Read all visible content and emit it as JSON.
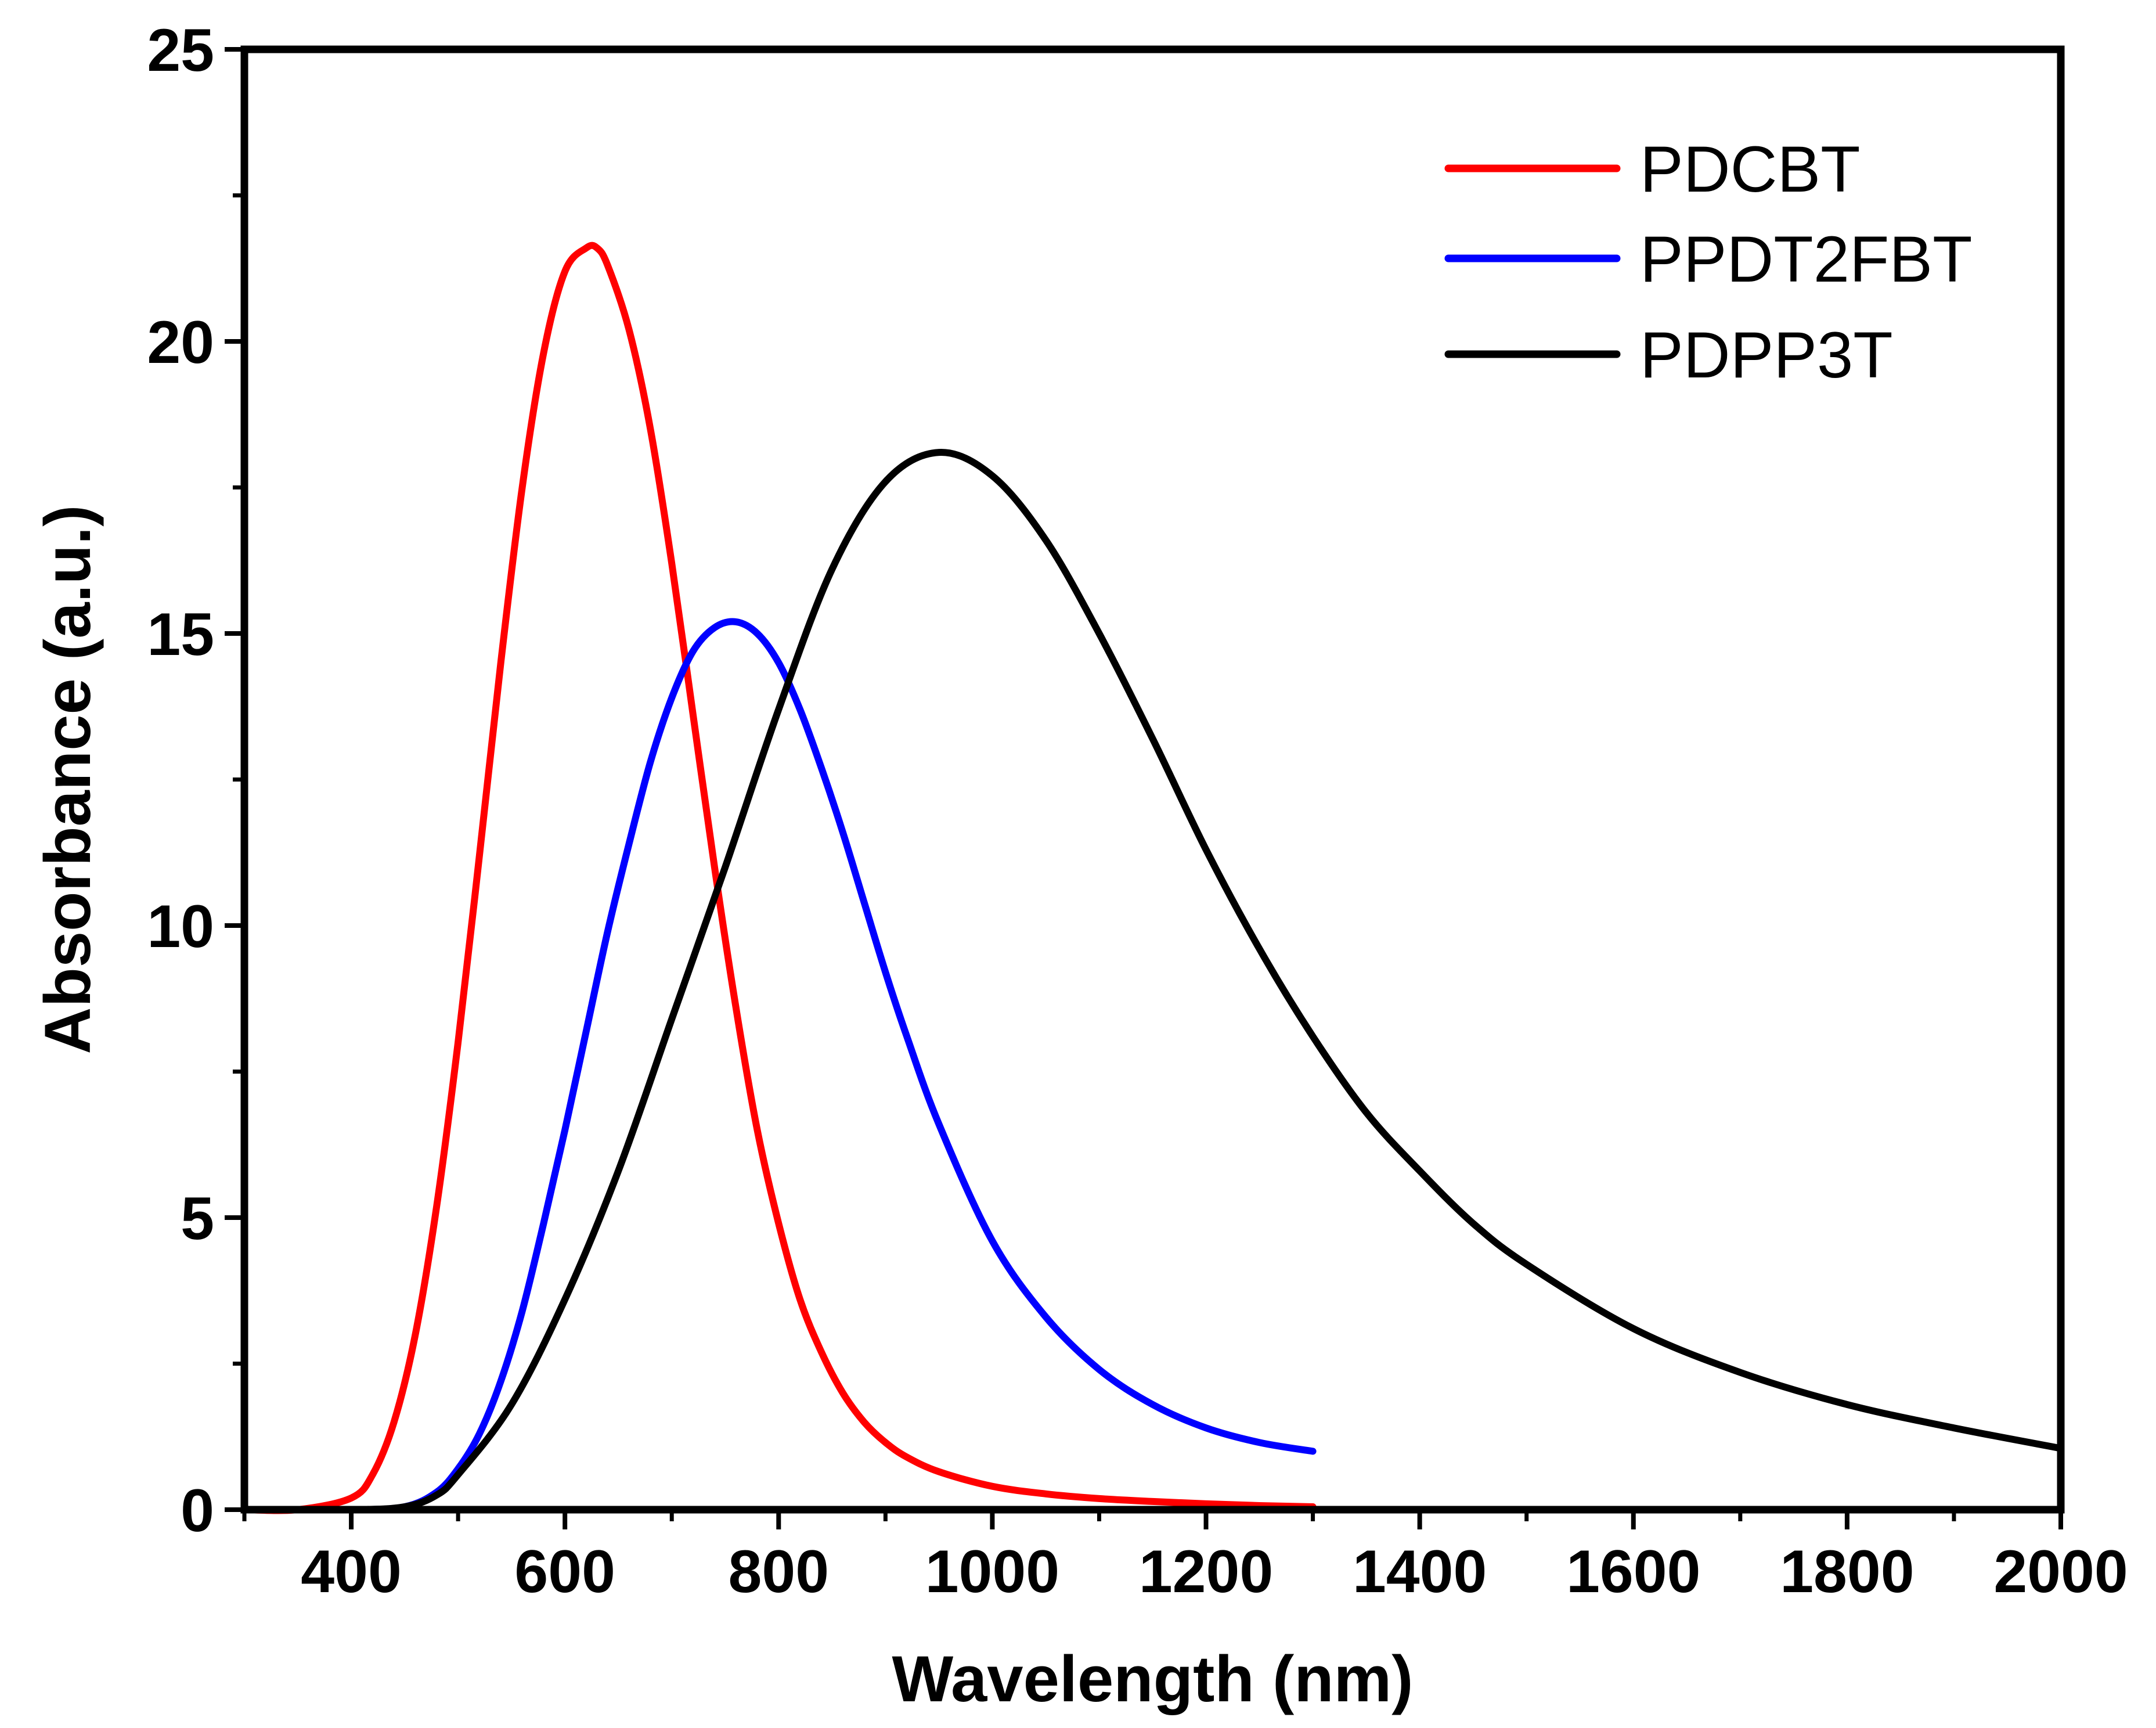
{
  "chart_data": {
    "type": "line",
    "title": "",
    "xlabel": "Wavelength (nm)",
    "ylabel": "Absorbance (a.u.)",
    "xlim": [
      300,
      2000
    ],
    "ylim": [
      0,
      25
    ],
    "x_ticks": [
      400,
      600,
      800,
      1000,
      1200,
      1400,
      1600,
      1800,
      2000
    ],
    "x_tick_labels": [
      "400",
      "600",
      "800",
      "1000",
      "1200",
      "1400",
      "1600",
      "1800",
      "2000"
    ],
    "y_ticks": [
      0,
      5,
      10,
      15,
      20,
      25
    ],
    "y_tick_labels": [
      "0",
      "5",
      "10",
      "15",
      "20",
      "25"
    ],
    "grid": false,
    "legend_position": "top-right",
    "series": [
      {
        "name": "PDCBT",
        "color": "#ff0000",
        "x": [
          300,
          350,
          400,
          420,
          440,
          460,
          480,
          500,
          520,
          540,
          560,
          580,
          600,
          620,
          630,
          640,
          660,
          680,
          700,
          720,
          740,
          760,
          780,
          800,
          820,
          840,
          860,
          880,
          900,
          920,
          950,
          1000,
          1050,
          1100,
          1150,
          1200,
          1250,
          1300
        ],
        "y": [
          0,
          0,
          0.2,
          0.6,
          1.5,
          3.0,
          5.2,
          8.0,
          11.2,
          14.5,
          17.5,
          19.8,
          21.2,
          21.6,
          21.6,
          21.3,
          20.2,
          18.5,
          16.2,
          13.6,
          11.0,
          8.6,
          6.5,
          4.9,
          3.6,
          2.7,
          2.0,
          1.5,
          1.15,
          0.9,
          0.65,
          0.4,
          0.27,
          0.19,
          0.14,
          0.1,
          0.07,
          0.05
        ]
      },
      {
        "name": "PPDT2FBT",
        "color": "#0000ff",
        "x": [
          300,
          400,
          450,
          480,
          500,
          520,
          540,
          560,
          580,
          600,
          620,
          640,
          660,
          680,
          700,
          720,
          740,
          760,
          780,
          800,
          820,
          840,
          860,
          880,
          900,
          920,
          950,
          1000,
          1050,
          1100,
          1150,
          1200,
          1250,
          1300
        ],
        "y": [
          0,
          0,
          0.05,
          0.3,
          0.7,
          1.3,
          2.2,
          3.4,
          4.9,
          6.5,
          8.2,
          9.9,
          11.4,
          12.8,
          13.9,
          14.7,
          15.1,
          15.2,
          15.0,
          14.5,
          13.7,
          12.7,
          11.6,
          10.4,
          9.2,
          8.1,
          6.6,
          4.6,
          3.3,
          2.4,
          1.8,
          1.4,
          1.15,
          1.0
        ]
      },
      {
        "name": "PDPP3T",
        "color": "#000000",
        "x": [
          300,
          400,
          450,
          480,
          500,
          550,
          600,
          650,
          700,
          750,
          800,
          850,
          900,
          950,
          1000,
          1050,
          1100,
          1150,
          1200,
          1250,
          1300,
          1350,
          1400,
          1450,
          1500,
          1600,
          1700,
          1800,
          1900,
          2000
        ],
        "y": [
          0,
          0,
          0.05,
          0.25,
          0.6,
          1.8,
          3.6,
          5.8,
          8.4,
          11.0,
          13.7,
          16.1,
          17.6,
          18.1,
          17.7,
          16.6,
          15.0,
          13.2,
          11.3,
          9.6,
          8.1,
          6.8,
          5.8,
          4.9,
          4.2,
          3.1,
          2.35,
          1.8,
          1.4,
          1.05
        ]
      }
    ]
  }
}
